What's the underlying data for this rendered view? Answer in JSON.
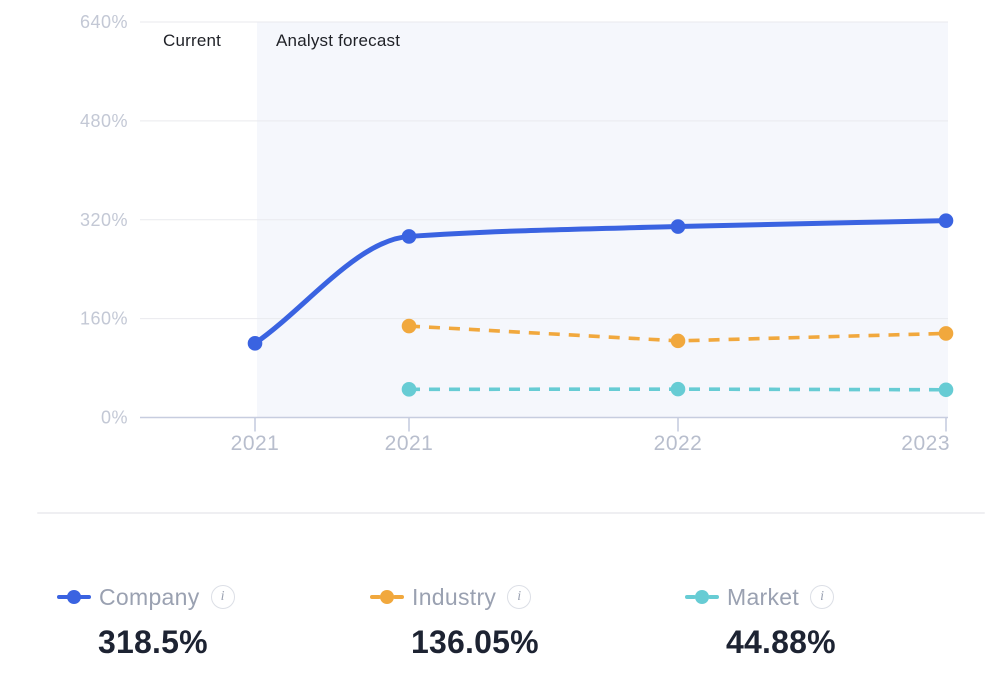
{
  "chart_data": {
    "type": "line",
    "title": "",
    "xlabel": "",
    "ylabel": "",
    "categories": [
      "2021",
      "2021",
      "2022",
      "2023"
    ],
    "series": [
      {
        "name": "Company",
        "color": "#3a63e1",
        "line_style": "solid",
        "values": [
          120,
          293,
          309,
          318.5
        ]
      },
      {
        "name": "Industry",
        "color": "#f1a83d",
        "line_style": "dashed",
        "values": [
          null,
          148,
          124,
          136.05
        ]
      },
      {
        "name": "Market",
        "color": "#67ccd4",
        "line_style": "dashed",
        "values": [
          null,
          45.6,
          45.9,
          44.88
        ]
      }
    ],
    "y_ticks": [
      {
        "value": 640,
        "label": "640%"
      },
      {
        "value": 480,
        "label": "480%"
      },
      {
        "value": 320,
        "label": "320%"
      },
      {
        "value": 160,
        "label": "160%"
      },
      {
        "value": 0,
        "label": "0%"
      }
    ],
    "ylim": [
      0,
      640
    ],
    "grid": "horizontal",
    "legend_position": "bottom",
    "annotations": [
      "Current",
      "Analyst forecast"
    ],
    "forecast_region": {
      "start_category_index": 0,
      "end_category_index": 3,
      "fill": "#f5f7fc",
      "note": "shaded analyst-forecast band begins at the first 2021 tick and runs to 2023"
    }
  },
  "legend": {
    "items": [
      {
        "label": "Company",
        "value": "318.5%",
        "color": "#3a63e1",
        "marker_style": "solid",
        "info_glyph": "i"
      },
      {
        "label": "Industry",
        "value": "136.05%",
        "color": "#f1a83d",
        "marker_style": "dashed",
        "info_glyph": "i"
      },
      {
        "label": "Market",
        "value": "44.88%",
        "color": "#67ccd4",
        "marker_style": "dashed",
        "info_glyph": "i"
      }
    ]
  }
}
